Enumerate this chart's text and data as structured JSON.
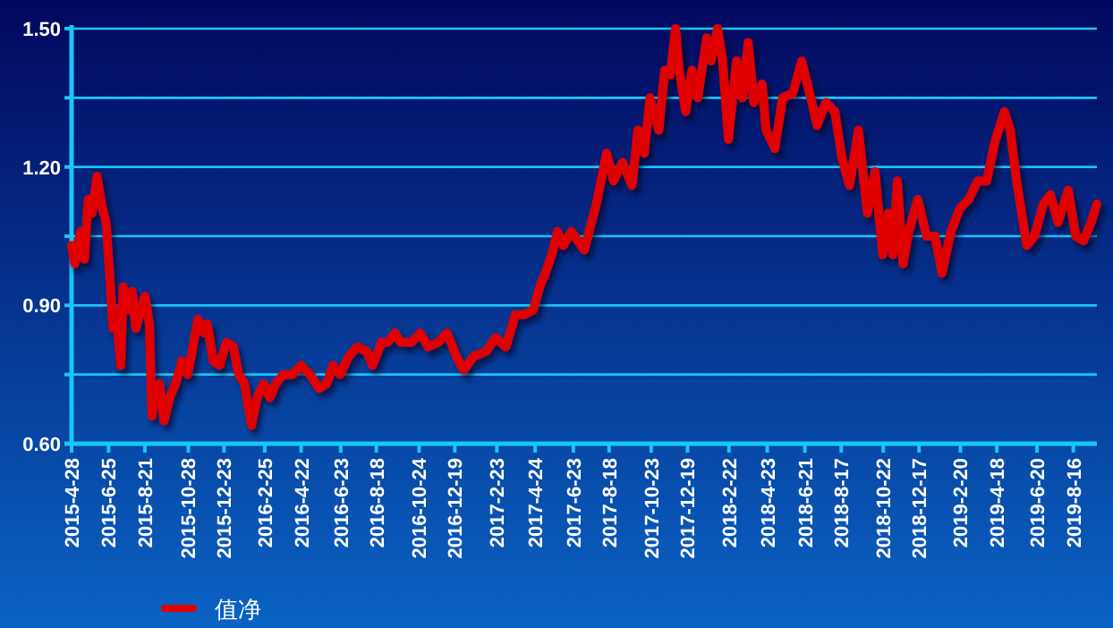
{
  "chart_data": {
    "type": "line",
    "grid": "y",
    "legend": "bottom",
    "xlim": [
      "2015-04-28",
      "2019-09-22"
    ],
    "xticks": [
      {
        "value": "2015-04-28",
        "label": "2015-4-28"
      },
      {
        "value": "2015-06-25",
        "label": "2015-6-25"
      },
      {
        "value": "2015-08-21",
        "label": "2015-8-21"
      },
      {
        "value": "2015-10-28",
        "label": "2015-10-28"
      },
      {
        "value": "2015-12-23",
        "label": "2015-12-23"
      },
      {
        "value": "2016-02-25",
        "label": "2016-2-25"
      },
      {
        "value": "2016-04-22",
        "label": "2016-4-22"
      },
      {
        "value": "2016-06-23",
        "label": "2016-6-23"
      },
      {
        "value": "2016-08-18",
        "label": "2016-8-18"
      },
      {
        "value": "2016-10-24",
        "label": "2016-10-24"
      },
      {
        "value": "2016-12-19",
        "label": "2016-12-19"
      },
      {
        "value": "2017-02-23",
        "label": "2017-2-23"
      },
      {
        "value": "2017-04-24",
        "label": "2017-4-24"
      },
      {
        "value": "2017-06-23",
        "label": "2017-6-23"
      },
      {
        "value": "2017-08-18",
        "label": "2017-8-18"
      },
      {
        "value": "2017-10-23",
        "label": "2017-10-23"
      },
      {
        "value": "2017-12-19",
        "label": "2017-12-19"
      },
      {
        "value": "2018-02-22",
        "label": "2018-2-22"
      },
      {
        "value": "2018-04-23",
        "label": "2018-4-23"
      },
      {
        "value": "2018-06-21",
        "label": "2018-6-21"
      },
      {
        "value": "2018-08-17",
        "label": "2018-8-17"
      },
      {
        "value": "2018-10-22",
        "label": "2018-10-22"
      },
      {
        "value": "2018-12-17",
        "label": "2018-12-17"
      },
      {
        "value": "2019-02-20",
        "label": "2019-2-20"
      },
      {
        "value": "2019-04-18",
        "label": "2019-4-18"
      },
      {
        "value": "2019-06-20",
        "label": "2019-6-20"
      },
      {
        "value": "2019-08-16",
        "label": "2019-8-16"
      }
    ],
    "ylim": [
      0.6,
      1.5
    ],
    "yticks": [
      {
        "value": 0.6,
        "label": "0.60"
      },
      {
        "value": 0.75,
        "label": null
      },
      {
        "value": 0.9,
        "label": "0.90"
      },
      {
        "value": 1.05,
        "label": null
      },
      {
        "value": 1.2,
        "label": "1.20"
      },
      {
        "value": 1.35,
        "label": null
      },
      {
        "value": 1.5,
        "label": "1.50"
      }
    ],
    "series": [
      {
        "name": "值净",
        "color": "#e00000",
        "x": [
          "2015-04-28",
          "2015-05-03",
          "2015-05-12",
          "2015-05-18",
          "2015-05-24",
          "2015-05-30",
          "2015-06-07",
          "2015-06-14",
          "2015-06-21",
          "2015-06-26",
          "2015-07-02",
          "2015-07-07",
          "2015-07-14",
          "2015-07-18",
          "2015-07-26",
          "2015-08-01",
          "2015-08-07",
          "2015-08-14",
          "2015-08-21",
          "2015-08-28",
          "2015-09-01",
          "2015-09-08",
          "2015-09-13",
          "2015-09-20",
          "2015-09-29",
          "2015-10-08",
          "2015-10-18",
          "2015-10-27",
          "2015-11-03",
          "2015-11-12",
          "2015-11-22",
          "2015-11-27",
          "2015-12-06",
          "2015-12-16",
          "2015-12-27",
          "2016-01-07",
          "2016-01-15",
          "2016-01-24",
          "2016-02-04",
          "2016-02-13",
          "2016-02-23",
          "2016-03-04",
          "2016-03-13",
          "2016-03-25",
          "2016-04-08",
          "2016-04-22",
          "2016-05-06",
          "2016-05-20",
          "2016-06-01",
          "2016-06-11",
          "2016-06-22",
          "2016-07-06",
          "2016-07-19",
          "2016-08-03",
          "2016-08-12",
          "2016-08-26",
          "2016-09-05",
          "2016-09-16",
          "2016-09-25",
          "2016-10-12",
          "2016-10-26",
          "2016-11-07",
          "2016-11-23",
          "2016-12-07",
          "2016-12-21",
          "2017-01-02",
          "2017-01-18",
          "2017-02-06",
          "2017-02-21",
          "2017-03-09",
          "2017-03-24",
          "2017-04-07",
          "2017-04-21",
          "2017-05-01",
          "2017-05-10",
          "2017-05-20",
          "2017-05-29",
          "2017-06-07",
          "2017-06-20",
          "2017-07-10",
          "2017-07-29",
          "2017-08-14",
          "2017-08-25",
          "2017-09-08",
          "2017-09-23",
          "2017-10-02",
          "2017-10-12",
          "2017-10-21",
          "2017-11-04",
          "2017-11-13",
          "2017-11-22",
          "2017-11-30",
          "2017-12-06",
          "2017-12-16",
          "2017-12-26",
          "2018-01-04",
          "2018-01-18",
          "2018-01-25",
          "2018-02-04",
          "2018-02-12",
          "2018-02-21",
          "2018-03-06",
          "2018-03-15",
          "2018-03-24",
          "2018-04-02",
          "2018-04-15",
          "2018-04-21",
          "2018-05-05",
          "2018-05-17",
          "2018-06-02",
          "2018-06-16",
          "2018-07-02",
          "2018-07-10",
          "2018-07-24",
          "2018-08-07",
          "2018-08-18",
          "2018-08-30",
          "2018-09-13",
          "2018-09-27",
          "2018-10-09",
          "2018-10-21",
          "2018-10-30",
          "2018-11-06",
          "2018-11-13",
          "2018-11-22",
          "2018-12-01",
          "2018-12-15",
          "2018-12-29",
          "2019-01-11",
          "2019-01-22",
          "2019-02-05",
          "2019-02-19",
          "2019-03-05",
          "2019-03-19",
          "2019-04-02",
          "2019-04-16",
          "2019-04-30",
          "2019-05-09",
          "2019-05-19",
          "2019-06-04",
          "2019-06-16",
          "2019-06-30",
          "2019-07-11",
          "2019-07-23",
          "2019-08-08",
          "2019-08-20",
          "2019-09-01",
          "2019-09-13",
          "2019-09-22"
        ],
        "values": [
          1.03,
          0.99,
          1.06,
          1.0,
          1.13,
          1.1,
          1.18,
          1.12,
          1.08,
          0.98,
          0.85,
          0.89,
          0.77,
          0.94,
          0.89,
          0.93,
          0.85,
          0.89,
          0.92,
          0.86,
          0.66,
          0.72,
          0.73,
          0.65,
          0.7,
          0.73,
          0.78,
          0.75,
          0.8,
          0.87,
          0.84,
          0.86,
          0.78,
          0.77,
          0.82,
          0.81,
          0.75,
          0.73,
          0.64,
          0.7,
          0.73,
          0.7,
          0.73,
          0.75,
          0.75,
          0.77,
          0.75,
          0.72,
          0.73,
          0.77,
          0.75,
          0.79,
          0.81,
          0.8,
          0.77,
          0.82,
          0.82,
          0.84,
          0.82,
          0.82,
          0.84,
          0.81,
          0.82,
          0.84,
          0.79,
          0.76,
          0.79,
          0.8,
          0.83,
          0.81,
          0.88,
          0.88,
          0.89,
          0.94,
          0.97,
          1.01,
          1.06,
          1.03,
          1.06,
          1.02,
          1.12,
          1.23,
          1.17,
          1.21,
          1.16,
          1.28,
          1.23,
          1.35,
          1.28,
          1.41,
          1.4,
          1.5,
          1.41,
          1.32,
          1.41,
          1.35,
          1.48,
          1.43,
          1.5,
          1.43,
          1.26,
          1.43,
          1.35,
          1.47,
          1.34,
          1.38,
          1.28,
          1.24,
          1.35,
          1.36,
          1.43,
          1.34,
          1.29,
          1.34,
          1.32,
          1.22,
          1.16,
          1.28,
          1.1,
          1.19,
          1.01,
          1.1,
          1.01,
          1.17,
          0.99,
          1.06,
          1.13,
          1.05,
          1.05,
          0.97,
          1.06,
          1.11,
          1.13,
          1.17,
          1.17,
          1.26,
          1.32,
          1.28,
          1.17,
          1.03,
          1.05,
          1.12,
          1.14,
          1.08,
          1.15,
          1.05,
          1.04,
          1.08,
          1.12
        ]
      }
    ]
  }
}
